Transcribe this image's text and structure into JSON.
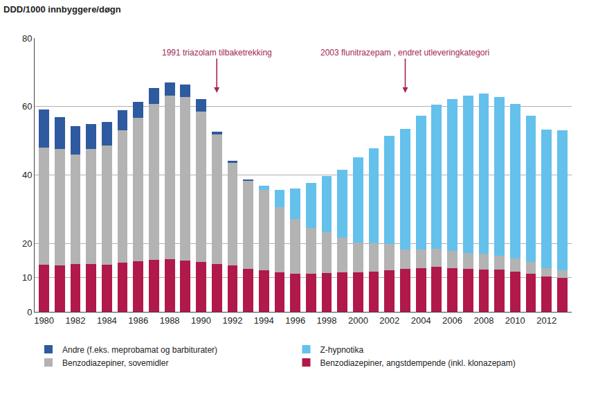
{
  "chart_data": {
    "type": "bar",
    "stacked": true,
    "grid": true,
    "legend": "bottom",
    "y_label": "DDD/1000 innbyggere/døgn",
    "x": [
      1980,
      1981,
      1982,
      1983,
      1984,
      1985,
      1986,
      1987,
      1988,
      1989,
      1990,
      1991,
      1992,
      1993,
      1994,
      1995,
      1996,
      1997,
      1998,
      1999,
      2000,
      2001,
      2002,
      2003,
      2004,
      2005,
      2006,
      2007,
      2008,
      2009,
      2010,
      2011,
      2012,
      2013
    ],
    "xlim": [
      1979.4,
      2013.6
    ],
    "xticks": [
      1980,
      1982,
      1984,
      1986,
      1988,
      1990,
      1992,
      1994,
      1996,
      1998,
      2000,
      2002,
      2004,
      2006,
      2008,
      2010,
      2012
    ],
    "ylim": [
      0,
      80
    ],
    "yticks": [
      0,
      10,
      20,
      40,
      60,
      80
    ],
    "annotations": [
      {
        "x": 1991,
        "text": "1991 triazolam tilbaketrekking",
        "color": "#a3284f"
      },
      {
        "x": 2003,
        "text": "2003 flunitrazepam , endret utleveringkategori",
        "color": "#a3284f"
      }
    ],
    "series": [
      {
        "name": "Benzodiazepiner, angstdempende (inkl. klonazepam)",
        "color": "#b0194a",
        "values": [
          13.8,
          13.5,
          14.0,
          13.9,
          13.8,
          14.3,
          14.7,
          15.1,
          15.3,
          14.9,
          14.6,
          14.0,
          13.5,
          12.6,
          12.2,
          11.6,
          11.2,
          11.2,
          11.4,
          11.5,
          11.6,
          11.8,
          12.2,
          12.6,
          12.8,
          13.1,
          12.8,
          12.6,
          12.4,
          12.3,
          11.8,
          11.1,
          10.3,
          9.9
        ]
      },
      {
        "name": "Benzodiazepiner, sovemidler",
        "color": "#b3b3b3",
        "values": [
          34.3,
          34.1,
          32.0,
          33.7,
          34.8,
          38.7,
          42.1,
          45.7,
          47.9,
          47.8,
          44.0,
          37.9,
          30.0,
          25.8,
          23.5,
          18.9,
          15.9,
          13.4,
          11.8,
          10.1,
          8.7,
          8.2,
          7.7,
          5.6,
          5.4,
          5.3,
          5.0,
          4.6,
          4.6,
          4.2,
          3.7,
          3.4,
          2.5,
          2.3
        ]
      },
      {
        "name": "Z-hypnotika",
        "color": "#63c1ec",
        "values": [
          null,
          null,
          null,
          null,
          null,
          null,
          null,
          null,
          null,
          null,
          null,
          null,
          null,
          null,
          1.1,
          5.2,
          9.0,
          13.0,
          16.5,
          20.0,
          24.8,
          27.8,
          31.5,
          35.3,
          39.1,
          42.1,
          44.4,
          46.0,
          46.8,
          46.2,
          45.3,
          42.8,
          40.4,
          40.8
        ]
      },
      {
        "name": "Andre (f.eks. meprobamat og barbiturater)",
        "color": "#2e5a9f",
        "values": [
          11.1,
          9.4,
          8.3,
          7.3,
          6.8,
          5.9,
          4.6,
          4.6,
          3.8,
          3.8,
          3.6,
          0.8,
          0.6,
          0.3,
          null,
          null,
          null,
          null,
          null,
          null,
          null,
          null,
          null,
          null,
          null,
          null,
          null,
          null,
          null,
          null,
          null,
          null,
          null,
          null
        ]
      }
    ]
  }
}
